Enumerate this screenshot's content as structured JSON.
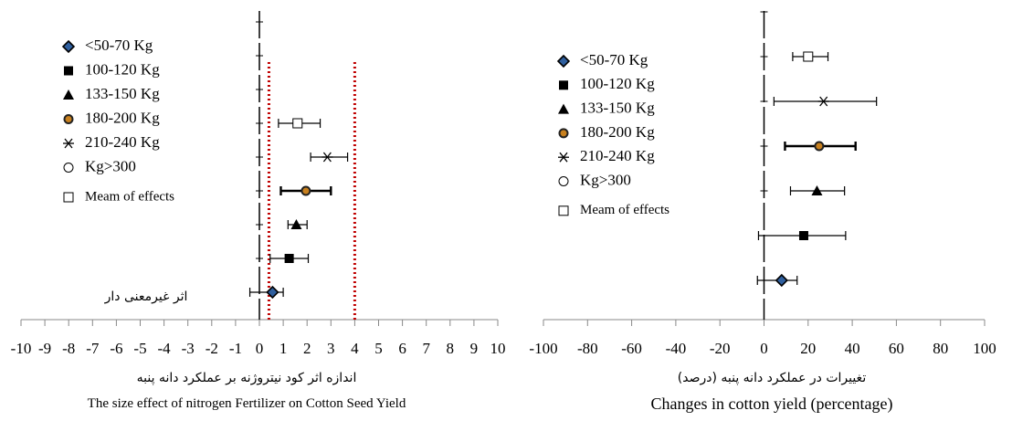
{
  "chart_data": [
    {
      "type": "forest",
      "xlim": [
        -10,
        10
      ],
      "xticks": [
        -10,
        -9,
        -8,
        -7,
        -6,
        -5,
        -4,
        -3,
        -2,
        -1,
        0,
        1,
        2,
        3,
        4,
        5,
        6,
        7,
        8,
        9,
        10
      ],
      "xlabel_fa": "اندازه اثر کود نیتروژنه بر عملکرد دانه پنبه",
      "xlabel_en": "The size effect of nitrogen Fertilizer  on Cotton Seed Yield",
      "annotation": "اثر غیرمعنی دار",
      "reference_lines": [
        {
          "value": 0.4,
          "color": "#c00000"
        },
        {
          "value": 4,
          "color": "#c00000"
        }
      ],
      "series": [
        {
          "name": "<50-70 Kg",
          "marker": "diamond",
          "value": 0.55,
          "low": -0.4,
          "high": 1.0
        },
        {
          "name": "100-120 Kg",
          "marker": "square",
          "value": 1.25,
          "low": 0.45,
          "high": 2.05
        },
        {
          "name": "133-150 Kg",
          "marker": "triangle",
          "value": 1.55,
          "low": 1.2,
          "high": 2.0
        },
        {
          "name": "180-200 Kg",
          "marker": "circle",
          "value": 1.95,
          "low": 0.9,
          "high": 3.0
        },
        {
          "name": "210-240 Kg",
          "marker": "star",
          "value": 2.85,
          "low": 2.15,
          "high": 3.7
        },
        {
          "name": "Kg>300",
          "marker": "open-circle",
          "value": null,
          "low": null,
          "high": null
        },
        {
          "name": "Meam of effects",
          "marker": "open-square",
          "value": 1.6,
          "low": 0.8,
          "high": 2.55
        }
      ]
    },
    {
      "type": "forest",
      "xlim": [
        -100,
        100
      ],
      "xticks": [
        -100,
        -80,
        -60,
        -40,
        -20,
        0,
        20,
        40,
        60,
        80,
        100
      ],
      "xlabel_fa": "تغییرات در عملکرد دانه پنبه (درصد)",
      "xlabel_en": "Changes in cotton yield (percentage)",
      "series": [
        {
          "name": "<50-70 Kg",
          "marker": "diamond",
          "value": 8,
          "low": -3,
          "high": 15
        },
        {
          "name": "100-120 Kg",
          "marker": "square",
          "value": 18,
          "low": -2.5,
          "high": 37
        },
        {
          "name": "133-150 Kg",
          "marker": "triangle",
          "value": 24,
          "low": 12,
          "high": 36.5
        },
        {
          "name": "180-200 Kg",
          "marker": "circle",
          "value": 25,
          "low": 9.5,
          "high": 41.5
        },
        {
          "name": "210-240 Kg",
          "marker": "star",
          "value": 27,
          "low": 4.5,
          "high": 51
        },
        {
          "name": "Kg>300",
          "marker": "open-circle",
          "value": null,
          "low": null,
          "high": null
        },
        {
          "name": "Meam of effects",
          "marker": "open-square",
          "value": 20,
          "low": 13,
          "high": 29
        }
      ]
    }
  ]
}
